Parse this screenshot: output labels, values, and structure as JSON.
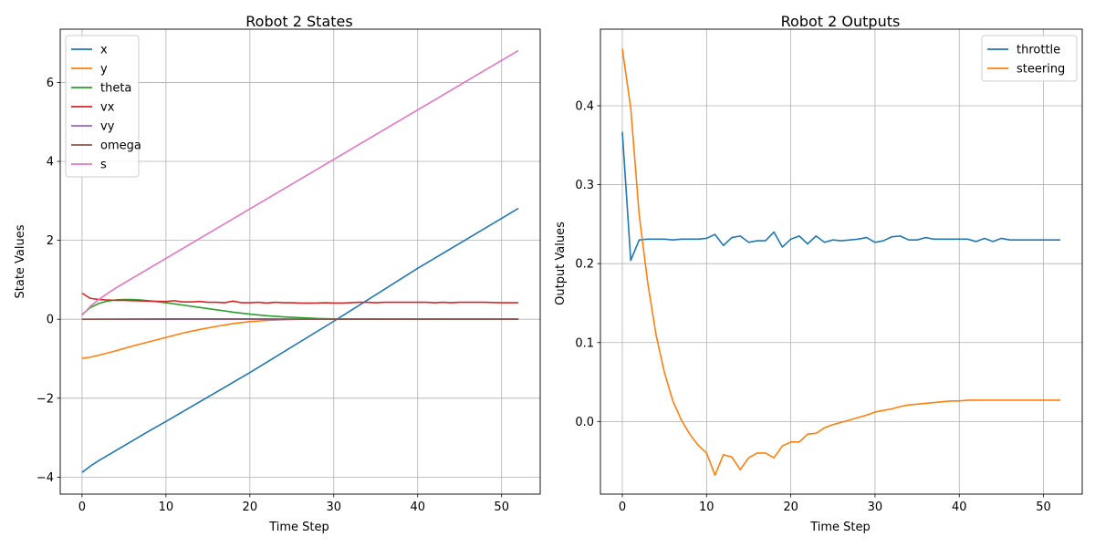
{
  "chart_data": [
    {
      "type": "line",
      "title": "Robot 2 States",
      "xlabel": "Time Step",
      "ylabel": "State Values",
      "xlim": [
        -2.6,
        54.6
      ],
      "ylim": [
        -4.43,
        7.35
      ],
      "xticks": [
        0,
        10,
        20,
        30,
        40,
        50
      ],
      "yticks": [
        -4,
        -2,
        0,
        2,
        4,
        6
      ],
      "grid": true,
      "legend_position": "top-left",
      "series": [
        {
          "name": "x",
          "color": "#1f77b4",
          "x": [
            0,
            1,
            2,
            4,
            6,
            8,
            10,
            20,
            30,
            40,
            52
          ],
          "values": [
            -3.88,
            -3.72,
            -3.58,
            -3.33,
            -3.08,
            -2.83,
            -2.59,
            -1.35,
            -0.05,
            1.29,
            2.81
          ]
        },
        {
          "name": "y",
          "color": "#ff7f0e",
          "x": [
            0,
            1,
            2,
            4,
            6,
            8,
            10,
            12,
            14,
            16,
            18,
            20,
            22,
            24,
            26,
            28,
            30,
            52
          ],
          "values": [
            -0.99,
            -0.96,
            -0.91,
            -0.8,
            -0.68,
            -0.57,
            -0.46,
            -0.35,
            -0.26,
            -0.18,
            -0.11,
            -0.06,
            -0.03,
            -0.01,
            0.0,
            0.01,
            0.01,
            0.01
          ]
        },
        {
          "name": "theta",
          "color": "#2ca02c",
          "x": [
            0,
            1,
            2,
            3,
            4,
            5,
            6,
            7,
            8,
            10,
            12,
            14,
            16,
            18,
            20,
            22,
            24,
            26,
            28,
            30,
            52
          ],
          "values": [
            0.12,
            0.3,
            0.4,
            0.46,
            0.49,
            0.5,
            0.5,
            0.49,
            0.47,
            0.42,
            0.36,
            0.3,
            0.24,
            0.18,
            0.13,
            0.09,
            0.06,
            0.04,
            0.02,
            0.01,
            0.0
          ]
        },
        {
          "name": "vx",
          "color": "#d62728",
          "x": [
            0,
            1,
            2,
            3,
            4,
            5,
            6,
            8,
            10,
            11,
            12,
            13,
            14,
            15,
            16,
            17,
            18,
            19,
            20,
            21,
            22,
            23,
            24,
            25,
            26,
            27,
            28,
            29,
            30,
            31,
            32,
            33,
            34,
            35,
            36,
            38,
            40,
            41,
            42,
            43,
            44,
            45,
            46,
            48,
            50,
            52
          ],
          "values": [
            0.66,
            0.53,
            0.5,
            0.49,
            0.48,
            0.48,
            0.47,
            0.46,
            0.45,
            0.47,
            0.44,
            0.44,
            0.45,
            0.43,
            0.43,
            0.42,
            0.46,
            0.42,
            0.42,
            0.43,
            0.41,
            0.43,
            0.42,
            0.42,
            0.41,
            0.41,
            0.41,
            0.42,
            0.41,
            0.41,
            0.42,
            0.43,
            0.43,
            0.42,
            0.43,
            0.43,
            0.43,
            0.43,
            0.42,
            0.43,
            0.42,
            0.43,
            0.43,
            0.43,
            0.42,
            0.42
          ]
        },
        {
          "name": "vy",
          "color": "#9467bd",
          "x": [
            0,
            52
          ],
          "values": [
            0.0,
            0.0
          ]
        },
        {
          "name": "omega",
          "color": "#8c564b",
          "x": [
            0,
            10,
            20,
            30,
            40,
            52
          ],
          "values": [
            0.0,
            0.01,
            0.01,
            0.0,
            0.0,
            0.0
          ]
        },
        {
          "name": "s",
          "color": "#e377c2",
          "x": [
            0,
            1,
            2,
            3,
            4,
            52
          ],
          "values": [
            0.1,
            0.33,
            0.5,
            0.65,
            0.79,
            6.81
          ]
        }
      ]
    },
    {
      "type": "line",
      "title": "Robot 2 Outputs",
      "xlabel": "Time Step",
      "ylabel": "Output Values",
      "xlim": [
        -2.6,
        54.6
      ],
      "ylim": [
        -0.092,
        0.497
      ],
      "xticks": [
        0,
        10,
        20,
        30,
        40,
        50
      ],
      "yticks": [
        0.0,
        0.1,
        0.2,
        0.3,
        0.4
      ],
      "ytick_labels": [
        "0.0",
        "0.1",
        "0.2",
        "0.3",
        "0.4"
      ],
      "grid": true,
      "legend_position": "top-right",
      "series": [
        {
          "name": "throttle",
          "color": "#1f77b4",
          "x": [
            0,
            1,
            2,
            3,
            4,
            5,
            6,
            7,
            8,
            9,
            10,
            11,
            12,
            13,
            14,
            15,
            16,
            17,
            18,
            19,
            20,
            21,
            22,
            23,
            24,
            25,
            26,
            27,
            28,
            29,
            30,
            31,
            32,
            33,
            34,
            35,
            36,
            37,
            38,
            39,
            40,
            41,
            42,
            43,
            44,
            45,
            46,
            47,
            48,
            49,
            50,
            51,
            52
          ],
          "values": [
            0.367,
            0.204,
            0.23,
            0.231,
            0.231,
            0.231,
            0.23,
            0.231,
            0.231,
            0.231,
            0.232,
            0.237,
            0.223,
            0.233,
            0.235,
            0.227,
            0.229,
            0.229,
            0.24,
            0.221,
            0.231,
            0.235,
            0.225,
            0.235,
            0.227,
            0.23,
            0.229,
            0.23,
            0.231,
            0.233,
            0.227,
            0.229,
            0.234,
            0.235,
            0.23,
            0.23,
            0.233,
            0.231,
            0.231,
            0.231,
            0.231,
            0.231,
            0.228,
            0.232,
            0.228,
            0.232,
            0.23,
            0.23,
            0.23,
            0.23,
            0.23,
            0.23,
            0.23
          ]
        },
        {
          "name": "steering",
          "color": "#ff7f0e",
          "x": [
            0,
            1,
            2,
            3,
            4,
            5,
            6,
            7,
            8,
            9,
            10,
            11,
            12,
            13,
            14,
            15,
            16,
            17,
            18,
            19,
            20,
            21,
            22,
            23,
            24,
            25,
            26,
            27,
            28,
            29,
            30,
            31,
            32,
            33,
            34,
            35,
            36,
            37,
            38,
            39,
            40,
            41,
            42,
            43,
            44,
            45,
            46,
            47,
            48,
            49,
            50,
            51,
            52
          ],
          "values": [
            0.472,
            0.397,
            0.262,
            0.177,
            0.11,
            0.062,
            0.026,
            0.002,
            -0.016,
            -0.03,
            -0.04,
            -0.068,
            -0.042,
            -0.045,
            -0.061,
            -0.046,
            -0.04,
            -0.04,
            -0.046,
            -0.031,
            -0.026,
            -0.026,
            -0.016,
            -0.015,
            -0.008,
            -0.004,
            -0.001,
            0.002,
            0.005,
            0.008,
            0.012,
            0.014,
            0.016,
            0.019,
            0.021,
            0.022,
            0.023,
            0.024,
            0.025,
            0.026,
            0.026,
            0.027,
            0.027,
            0.027,
            0.027,
            0.027,
            0.027,
            0.027,
            0.027,
            0.027,
            0.027,
            0.027,
            0.027
          ]
        }
      ]
    }
  ]
}
